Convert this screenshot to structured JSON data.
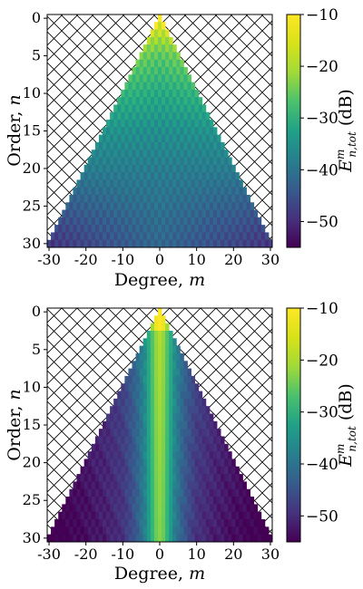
{
  "chart_data": [
    {
      "type": "heatmap",
      "panel": "top",
      "xlabel": "Degree, m",
      "ylabel": "Order, n",
      "x_ticks": [
        "-30",
        "-20",
        "-10",
        "0",
        "10",
        "20",
        "30"
      ],
      "y_ticks": [
        "0",
        "5",
        "10",
        "15",
        "20",
        "25",
        "30"
      ],
      "xlim": [
        -30,
        30
      ],
      "ylim": [
        30,
        0
      ],
      "triangle_domain": "|m| <= n",
      "hatched_region": "|m| > n",
      "colorbar_label": "E^m_{n,tot} (dB)",
      "colorbar_range": [
        -55,
        -10
      ],
      "colorbar_ticks": [
        "−10",
        "−20",
        "−30",
        "−40",
        "−50"
      ],
      "profile_by_n": {
        "n": [
          0,
          5,
          10,
          15,
          20,
          25,
          30
        ],
        "center_dB": [
          -10,
          -22,
          -28,
          -33,
          -36,
          -38,
          -40
        ],
        "edge_dB": [
          -10,
          -20,
          -26,
          -32,
          -36,
          -42,
          -48
        ]
      },
      "pattern": "checkerboard alternation in m+n parity"
    },
    {
      "type": "heatmap",
      "panel": "bottom",
      "xlabel": "Degree, m",
      "ylabel": "Order, n",
      "x_ticks": [
        "-30",
        "-20",
        "-10",
        "0",
        "10",
        "20",
        "30"
      ],
      "y_ticks": [
        "0",
        "5",
        "10",
        "15",
        "20",
        "25",
        "30"
      ],
      "xlim": [
        -30,
        30
      ],
      "ylim": [
        30,
        0
      ],
      "triangle_domain": "|m| <= n",
      "hatched_region": "|m| > n",
      "colorbar_label": "E^m_{n,tot} (dB)",
      "colorbar_range": [
        -55,
        -10
      ],
      "colorbar_ticks": [
        "−10",
        "−20",
        "−30",
        "−40",
        "−50"
      ],
      "profile_by_abs_m": {
        "abs_m": [
          0,
          1,
          2,
          3,
          4,
          6,
          8,
          10,
          15,
          20,
          30
        ],
        "energy_dB": [
          -15,
          -17,
          -22,
          -27,
          -32,
          -38,
          -42,
          -45,
          -48,
          -50,
          -53
        ]
      },
      "pattern": "strong central ridge at m=0, decaying with |m|"
    }
  ]
}
